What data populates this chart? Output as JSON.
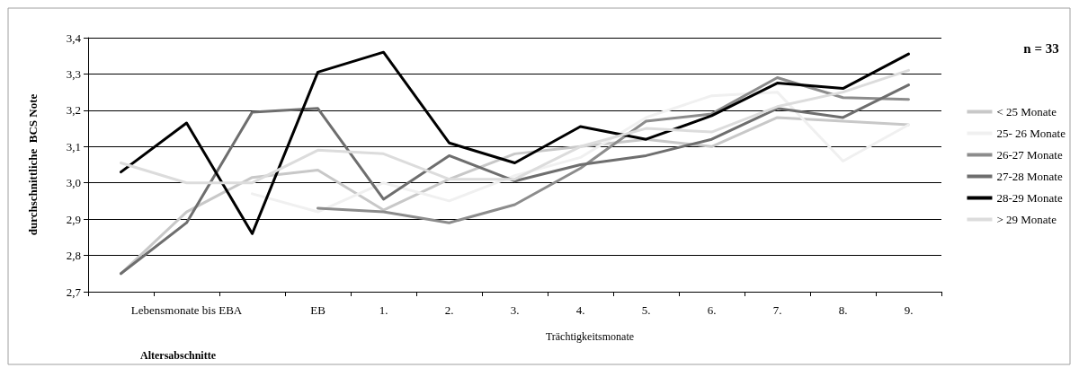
{
  "chart_data": {
    "type": "line",
    "xlabel": "Altersabschnitte",
    "ylabel": "durchschnittliche  BCS Note",
    "annotations": [
      "Trächtigkeitsmonate",
      "n = 33"
    ],
    "categories": [
      null,
      "Lebensmonate bis EBA",
      null,
      "EB",
      "1.",
      "2.",
      "3.",
      "4.",
      "5.",
      "6.",
      "7.",
      "8.",
      "9."
    ],
    "series": [
      {
        "name": "< 25 Monate",
        "color": "#c8c8c8",
        "values": [
          2.75,
          2.92,
          3.015,
          3.035,
          2.925,
          3.01,
          3.08,
          3.1,
          3.12,
          3.1,
          3.18,
          3.17,
          3.16
        ]
      },
      {
        "name": "25- 26 Monate",
        "color": "#f0f0f0",
        "values": [
          null,
          null,
          2.97,
          2.92,
          3.0,
          2.95,
          3.02,
          3.07,
          3.18,
          3.24,
          3.25,
          3.06,
          3.16
        ]
      },
      {
        "name": "26-27 Monate",
        "color": "#8c8c8c",
        "values": [
          null,
          null,
          null,
          2.93,
          2.92,
          2.89,
          2.94,
          3.04,
          3.17,
          3.19,
          3.29,
          3.235,
          3.23
        ]
      },
      {
        "name": "27-28 Monate",
        "color": "#6e6e6e",
        "values": [
          2.75,
          2.89,
          3.195,
          3.205,
          2.955,
          3.075,
          3.005,
          3.05,
          3.075,
          3.12,
          3.205,
          3.18,
          3.27
        ]
      },
      {
        "name": "28-29 Monate",
        "color": "#000000",
        "values": [
          3.03,
          3.165,
          2.86,
          3.305,
          3.36,
          3.11,
          3.055,
          3.155,
          3.12,
          3.185,
          3.275,
          3.26,
          3.355
        ]
      },
      {
        "name": "> 29 Monate",
        "color": "#dcdcdc",
        "values": [
          3.055,
          3.0,
          3.0,
          3.09,
          3.08,
          3.01,
          3.01,
          3.1,
          3.15,
          3.14,
          3.21,
          3.25,
          3.31
        ]
      }
    ],
    "ylim": [
      2.7,
      3.4
    ],
    "yticks": [
      {
        "value": 2.7,
        "label": "2,7"
      },
      {
        "value": 2.8,
        "label": "2,8"
      },
      {
        "value": 2.9,
        "label": "2,9"
      },
      {
        "value": 3.0,
        "label": "3,0"
      },
      {
        "value": 3.1,
        "label": "3,1"
      },
      {
        "value": 3.2,
        "label": "3,2"
      },
      {
        "value": 3.3,
        "label": "3,3"
      },
      {
        "value": 3.4,
        "label": "3,4"
      }
    ],
    "grid": "y",
    "legend": "right",
    "marker": "none",
    "line_style": "solid"
  }
}
